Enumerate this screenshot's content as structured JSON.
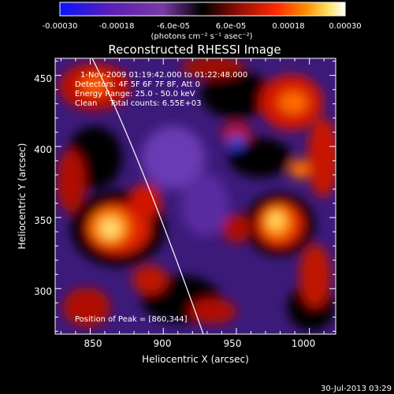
{
  "colorbar": {
    "ticks": [
      "-0.00030",
      "-0.00018",
      "-6.0e-05",
      "6.0e-05",
      "0.00018",
      "0.00030"
    ],
    "units": "(photons cm⁻² s⁻¹ asec⁻²)",
    "colors": [
      "#0a14ff",
      "#5a1fb4",
      "#7a3aa6",
      "#000000",
      "#8a0c06",
      "#ff2a00",
      "#ff8a00",
      "#ffe060",
      "#ffffff"
    ]
  },
  "title": "Reconstructed RHESSI Image",
  "info": {
    "time": "1-Nov-2009 01:19:42.000 to 01:22:48.000",
    "detectors": "Detectors: 4F 5F 6F 7F 8F, Att 0",
    "energy": "Energy Range: 25.0 - 50.0 keV",
    "clean": "Clean     Total counts: 6.55E+03"
  },
  "peak_label": "Position of Peak = [860,344]",
  "axes": {
    "xlabel": "Heliocentric X (arcsec)",
    "ylabel": "Heliocentric Y (arcsec)",
    "xticks": [
      "850",
      "900",
      "950",
      "1000"
    ],
    "yticks": [
      "300",
      "350",
      "400",
      "450"
    ],
    "xlim": [
      826,
      1018
    ],
    "ylim": [
      268,
      462
    ]
  },
  "footer": "30-Jul-2013 03:29"
}
